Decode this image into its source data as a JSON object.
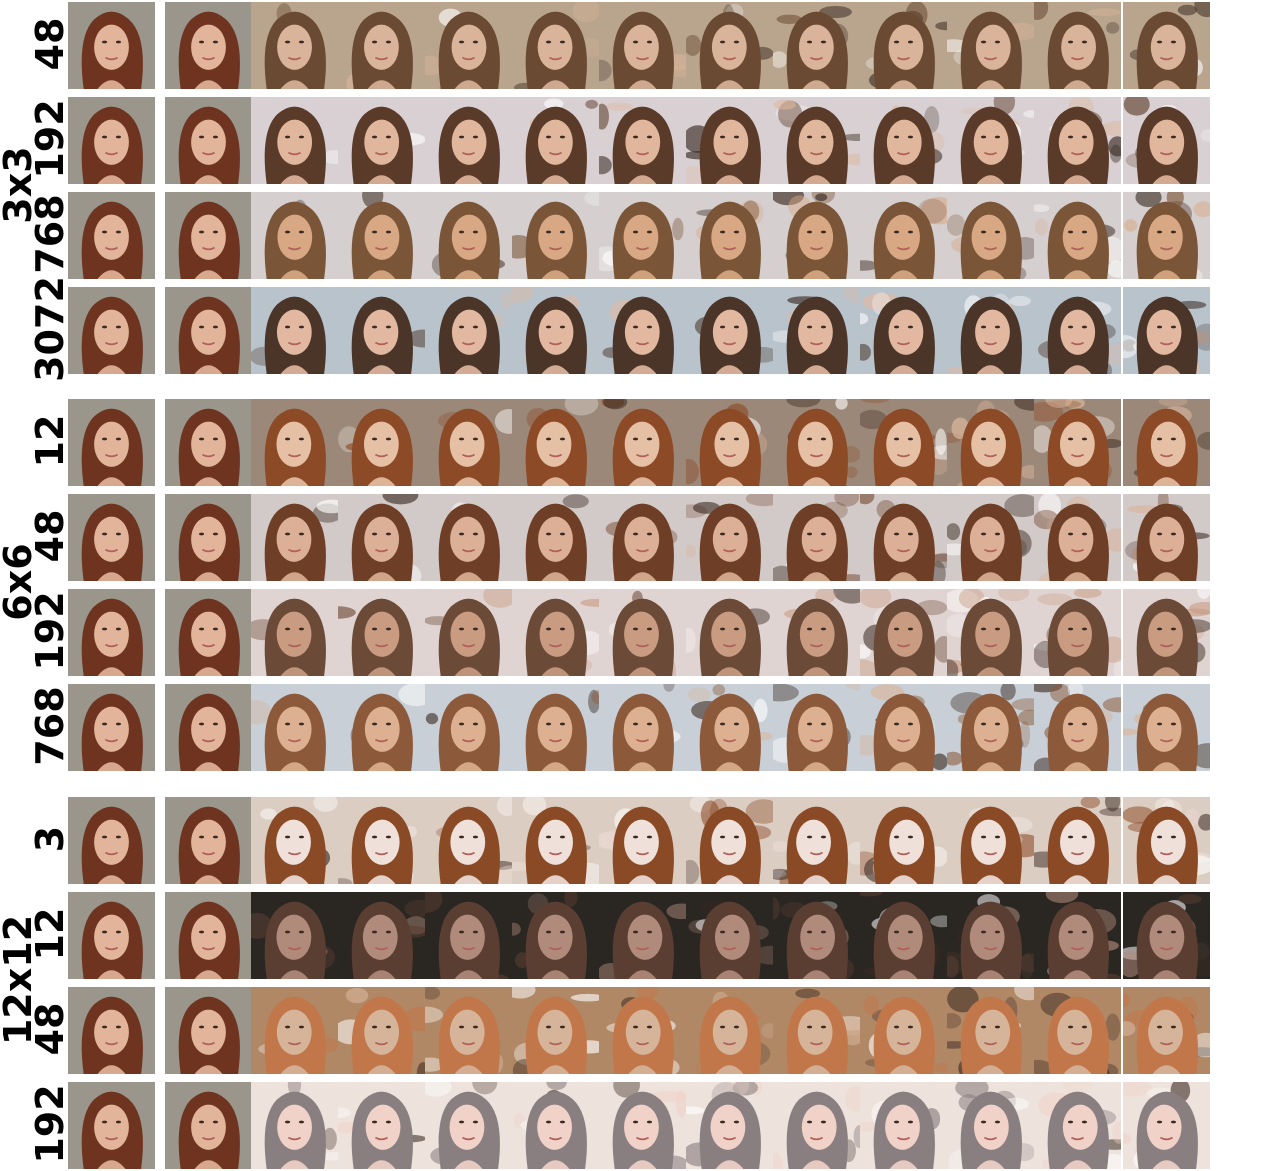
{
  "figure": {
    "groups": [
      {
        "label": "3x3",
        "rows": [
          "48",
          "192",
          "768",
          "3072"
        ]
      },
      {
        "label": "6x6",
        "rows": [
          "12",
          "48",
          "192",
          "768"
        ]
      },
      {
        "label": "12x12",
        "rows": [
          "3",
          "12",
          "48",
          "192"
        ]
      }
    ],
    "columns_per_row": 13,
    "reference_columns": 2,
    "palettes": {
      "reference": {
        "bg": "#9a968c",
        "hair": "#6e3420",
        "skin": "#e2b49a",
        "mouth": "#b0605a"
      },
      "3x3": [
        {
          "bg": "#b9a58e",
          "hair": "#6a4a32",
          "skin": "#d9b49a"
        },
        {
          "bg": "#d8d0d2",
          "hair": "#5a3a28",
          "skin": "#e0b79c"
        },
        {
          "bg": "#d6cfcf",
          "hair": "#7a5538",
          "skin": "#d8a884"
        },
        {
          "bg": "#b9c3cc",
          "hair": "#4a3528",
          "skin": "#e2b8a0"
        }
      ],
      "6x6": [
        {
          "bg": "#9c8878",
          "hair": "#8c4a26",
          "skin": "#e6c0a4"
        },
        {
          "bg": "#d2cac8",
          "hair": "#6e3e26",
          "skin": "#dbb096"
        },
        {
          "bg": "#e0d4d2",
          "hair": "#6c4a38",
          "skin": "#c99c82"
        },
        {
          "bg": "#c8cfd6",
          "hair": "#8c5a3a",
          "skin": "#dcb090"
        }
      ],
      "12x12": [
        {
          "bg": "#dccdc2",
          "hair": "#8a4a26",
          "skin": "#f0e0da"
        },
        {
          "bg": "#2a2622",
          "hair": "#5a3e32",
          "skin": "#b08a7a"
        },
        {
          "bg": "#b08866",
          "hair": "#c2774a",
          "skin": "#d6b49a"
        },
        {
          "bg": "#ede2dc",
          "hair": "#8a7f80",
          "skin": "#f0d2c8"
        }
      ]
    }
  }
}
